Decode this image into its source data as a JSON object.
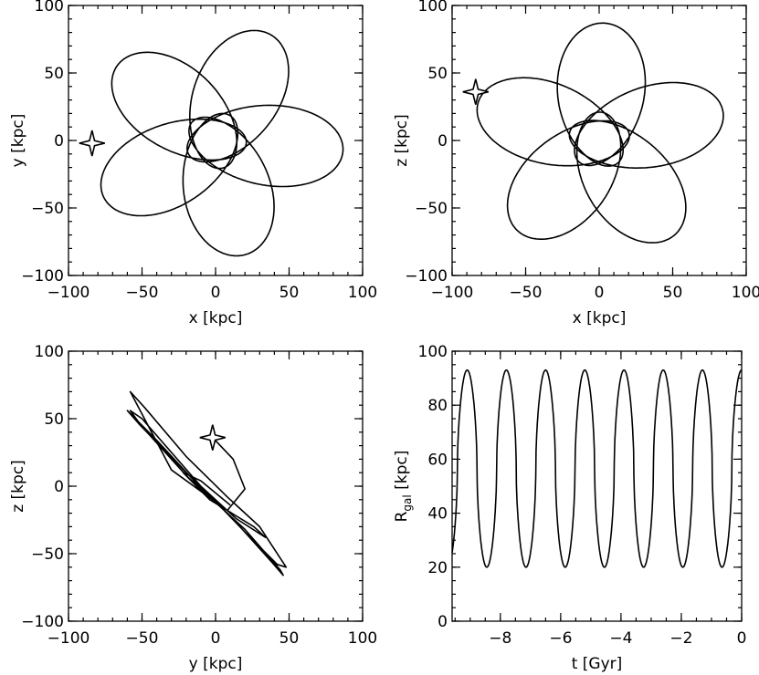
{
  "chart_data": [
    {
      "type": "line",
      "xlabel": "x [kpc]",
      "ylabel": "y [kpc]",
      "xlim": [
        -100,
        100
      ],
      "ylim": [
        -100,
        100
      ],
      "xticks": [
        -100,
        -50,
        0,
        50,
        100
      ],
      "yticks": [
        -100,
        -50,
        0,
        50,
        100
      ],
      "start_marker": {
        "x": -84,
        "y": -2
      },
      "series": [
        {
          "orbit": {
            "rotation_count": 5,
            "axis_a": 54,
            "axis_b": 19,
            "center_radius": 33,
            "start_angle_deg": 173
          }
        }
      ]
    },
    {
      "type": "line",
      "xlabel": "x [kpc]",
      "ylabel": "z [kpc]",
      "xlim": [
        -100,
        100
      ],
      "ylim": [
        -100,
        100
      ],
      "xticks": [
        -100,
        -50,
        0,
        50,
        100
      ],
      "yticks": [
        -100,
        -50,
        0,
        50,
        100
      ],
      "start_marker": {
        "x": -84,
        "y": 36
      },
      "series": [
        {
          "orbit": {
            "rotation_count": 5,
            "axis_a": 54,
            "axis_b": 19,
            "center_radius": 33,
            "start_angle_deg": 200
          }
        }
      ]
    },
    {
      "type": "line",
      "xlabel": "y [kpc]",
      "ylabel": "z [kpc]",
      "xlim": [
        -100,
        100
      ],
      "ylim": [
        -100,
        100
      ],
      "xticks": [
        -100,
        -50,
        0,
        50,
        100
      ],
      "yticks": [
        -100,
        -50,
        0,
        50,
        100
      ],
      "start_marker": {
        "x": -2,
        "y": 36
      },
      "series": [
        {
          "points": [
            [
              -2,
              36
            ],
            [
              12,
              20
            ],
            [
              20,
              -2
            ],
            [
              8,
              -18
            ],
            [
              -30,
              12
            ],
            [
              -58,
              70
            ],
            [
              -48,
              58
            ],
            [
              -20,
              22
            ],
            [
              8,
              -8
            ],
            [
              30,
              -30
            ],
            [
              48,
              -60
            ],
            [
              42,
              -58
            ],
            [
              20,
              -34
            ],
            [
              -10,
              0
            ],
            [
              -50,
              50
            ],
            [
              -58,
              56
            ],
            [
              -50,
              44
            ],
            [
              -20,
              8
            ],
            [
              10,
              -22
            ],
            [
              38,
              -56
            ],
            [
              46,
              -66
            ],
            [
              44,
              -62
            ],
            [
              20,
              -32
            ],
            [
              -6,
              -6
            ],
            [
              -40,
              34
            ],
            [
              -60,
              56
            ],
            [
              -52,
              46
            ],
            [
              -20,
              10
            ],
            [
              14,
              -24
            ],
            [
              34,
              -38
            ],
            [
              26,
              -30
            ],
            [
              -4,
              -10
            ],
            [
              -22,
              10
            ],
            [
              -10,
              4
            ],
            [
              10,
              -14
            ]
          ]
        }
      ]
    },
    {
      "type": "line",
      "xlabel": "t [Gyr]",
      "ylabel": "R",
      "ylabel_subscript": "gal",
      "ylabel_suffix": "[kpc]",
      "xlim": [
        -9.6,
        0
      ],
      "ylim": [
        0,
        100
      ],
      "xticks": [
        -8,
        -6,
        -4,
        -2,
        0
      ],
      "yticks": [
        0,
        20,
        40,
        60,
        80,
        100
      ],
      "series": [
        {
          "oscillation": {
            "r_min": 20,
            "r_max": 93,
            "period_gyr": 1.3,
            "max_at_t": 0
          }
        }
      ]
    }
  ]
}
